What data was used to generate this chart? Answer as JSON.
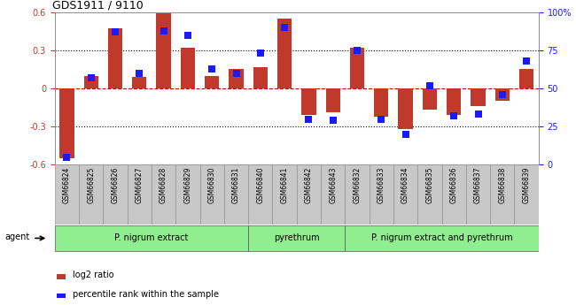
{
  "title": "GDS1911 / 9110",
  "samples": [
    "GSM66824",
    "GSM66825",
    "GSM66826",
    "GSM66827",
    "GSM66828",
    "GSM66829",
    "GSM66830",
    "GSM66831",
    "GSM66840",
    "GSM66841",
    "GSM66842",
    "GSM66843",
    "GSM66832",
    "GSM66833",
    "GSM66834",
    "GSM66835",
    "GSM66836",
    "GSM66837",
    "GSM66838",
    "GSM66839"
  ],
  "log2_ratio": [
    -0.55,
    0.1,
    0.47,
    0.09,
    0.59,
    0.32,
    0.1,
    0.15,
    0.17,
    0.55,
    -0.21,
    -0.19,
    0.32,
    -0.22,
    -0.32,
    -0.17,
    -0.21,
    -0.14,
    -0.1,
    0.15
  ],
  "pct_rank": [
    5,
    57,
    87,
    60,
    88,
    85,
    63,
    60,
    73,
    90,
    30,
    29,
    75,
    30,
    20,
    52,
    32,
    33,
    46,
    68
  ],
  "bar_color": "#c0392b",
  "dot_color": "#1a1aff",
  "ylim_left": [
    -0.6,
    0.6
  ],
  "ylim_right": [
    0,
    100
  ],
  "yticks_left": [
    -0.6,
    -0.3,
    0.0,
    0.3,
    0.6
  ],
  "yticks_right": [
    0,
    25,
    50,
    75,
    100
  ],
  "ytick_labels_right": [
    "0",
    "25",
    "50",
    "75",
    "100%"
  ],
  "hlines_dotted": [
    0.3,
    -0.3
  ],
  "hline_dashed": 0.0,
  "bg_color": "#ffffff",
  "legend_items": [
    {
      "label": "log2 ratio",
      "color": "#c0392b"
    },
    {
      "label": "percentile rank within the sample",
      "color": "#1a1aff"
    }
  ],
  "group_color": "#90ee90",
  "group_border": "#555555",
  "sample_box_color": "#c8c8c8",
  "sample_box_border": "#888888",
  "agent_label": "agent",
  "groups": [
    {
      "label": "P. nigrum extract",
      "start": 0,
      "end": 7
    },
    {
      "label": "pyrethrum",
      "start": 8,
      "end": 11
    },
    {
      "label": "P. nigrum extract and pyrethrum",
      "start": 12,
      "end": 19
    }
  ]
}
